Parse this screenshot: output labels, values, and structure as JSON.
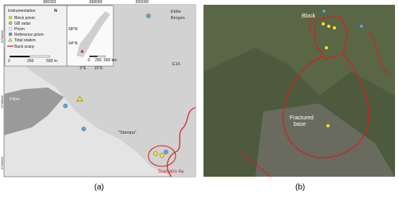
{
  "map": {
    "coords_x": [
      "386000",
      "388000",
      "390000"
    ],
    "coords_y": [
      "6760000",
      "6758000",
      "6756000"
    ],
    "legend": {
      "title": "Instrumentation",
      "items": [
        "Block prism",
        "GB radar",
        "Prism",
        "Reference prism",
        "Total station",
        "Back scarp"
      ]
    },
    "scale": [
      "0",
      "250",
      "500 m"
    ],
    "inset": {
      "scale": [
        "0",
        "250",
        "500 km"
      ],
      "lat": [
        "68°N",
        "64°N"
      ],
      "lon": [
        "5°E",
        "15°E"
      ]
    },
    "places": [
      "Ebbe",
      "Bergen",
      "E16",
      "Fibro",
      "\"Stampa\""
    ],
    "scenario": "Scenario 4a",
    "north": "N"
  },
  "photo": {
    "labels": [
      "Block",
      "Fractured",
      "base"
    ]
  },
  "captions": [
    "(a)",
    "(b)"
  ]
}
